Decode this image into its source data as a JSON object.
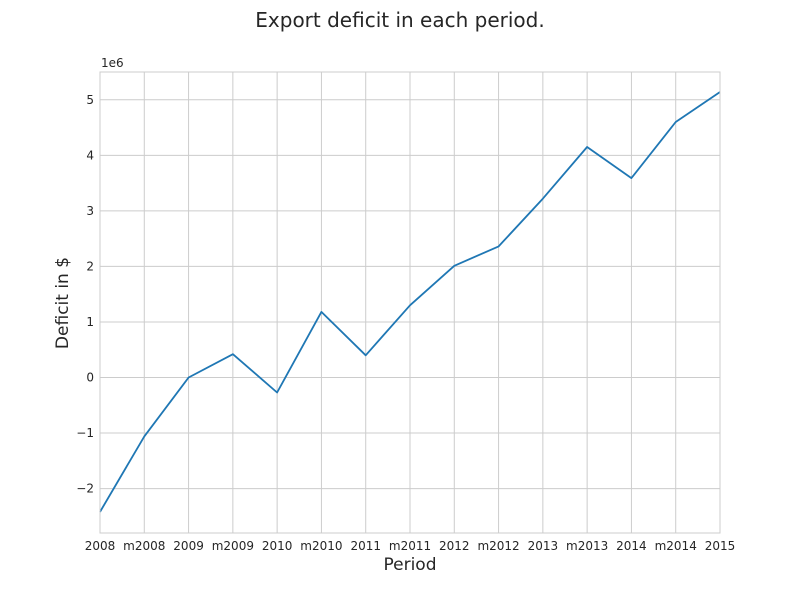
{
  "chart_data": {
    "type": "line",
    "title": "Export deficit in each period.",
    "xlabel": "Period",
    "ylabel": "Deficit in $",
    "y_offset_label": "1e6",
    "categories": [
      "2008",
      "m2008",
      "2009",
      "m2009",
      "2010",
      "m2010",
      "2011",
      "m2011",
      "2012",
      "m2012",
      "2013",
      "m2013",
      "2014",
      "m2014",
      "2015"
    ],
    "series": [
      {
        "values": [
          -2420000,
          -1060000,
          0,
          420000,
          -270000,
          1180000,
          400000,
          1300000,
          2010000,
          2360000,
          3220000,
          4150000,
          3590000,
          4600000,
          5140000
        ]
      }
    ],
    "ylim": [
      -2800000.0,
      5500000.0
    ],
    "y_ticks": [
      -2,
      -1,
      0,
      1,
      2,
      3,
      4,
      5
    ],
    "y_tick_labels": [
      "−2",
      "−1",
      "0",
      "1",
      "2",
      "3",
      "4",
      "5"
    ],
    "grid": true,
    "colors": {
      "line": "#1f77b4",
      "grid": "#cccccc",
      "frame": "#cccccc"
    }
  }
}
